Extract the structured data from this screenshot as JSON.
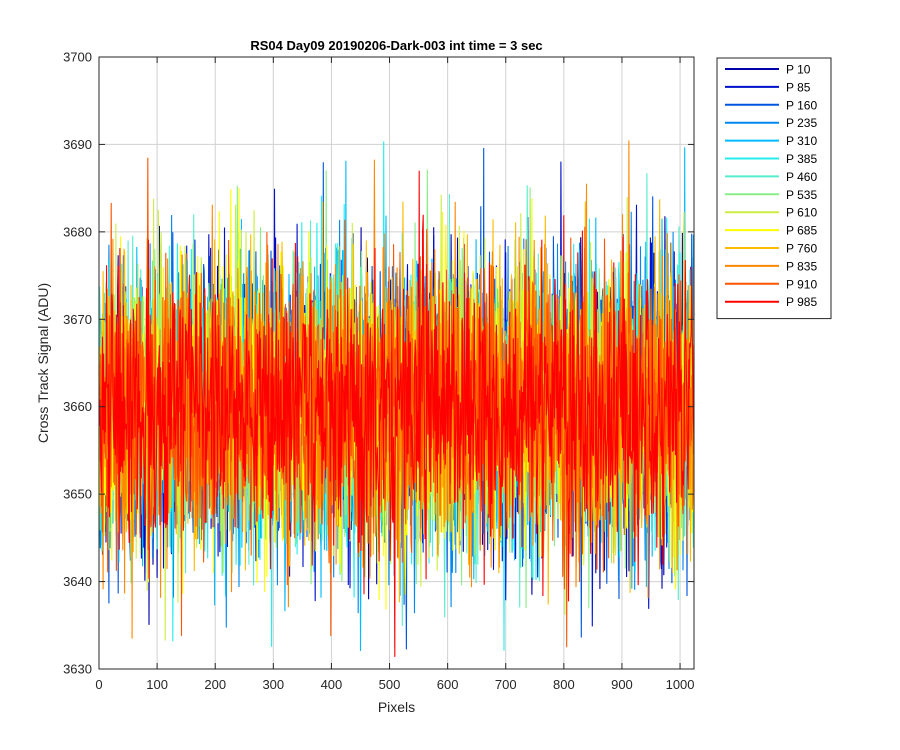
{
  "chart_data": {
    "type": "line",
    "title": "RS04 Day09 20190206-Dark-003 int time = 3 sec",
    "xlabel": "Pixels",
    "ylabel": "Cross Track Signal (ADU)",
    "xlim": [
      0,
      1024
    ],
    "ylim": [
      3630,
      3700
    ],
    "xticks": [
      0,
      100,
      200,
      300,
      400,
      500,
      600,
      700,
      800,
      900,
      1000
    ],
    "yticks": [
      3630,
      3640,
      3650,
      3660,
      3670,
      3680,
      3690,
      3700
    ],
    "grid": true,
    "legend_position": "outside-top-right",
    "noise_model": {
      "mean": 3660,
      "std": 8,
      "points_per_series": 1024
    },
    "series": [
      {
        "name": "P 10",
        "color": "#0000AA"
      },
      {
        "name": "P 85",
        "color": "#0011CC"
      },
      {
        "name": "P 160",
        "color": "#0055DD"
      },
      {
        "name": "P 235",
        "color": "#0088EE"
      },
      {
        "name": "P 310",
        "color": "#00BBFF"
      },
      {
        "name": "P 385",
        "color": "#22EEEE"
      },
      {
        "name": "P 460",
        "color": "#55EECC"
      },
      {
        "name": "P 535",
        "color": "#88EE88"
      },
      {
        "name": "P 610",
        "color": "#CCEE44"
      },
      {
        "name": "P 685",
        "color": "#FFFF00"
      },
      {
        "name": "P 760",
        "color": "#FFBB00"
      },
      {
        "name": "P 835",
        "color": "#FF8800"
      },
      {
        "name": "P 910",
        "color": "#FF5500"
      },
      {
        "name": "P 985",
        "color": "#FF0000"
      }
    ]
  }
}
